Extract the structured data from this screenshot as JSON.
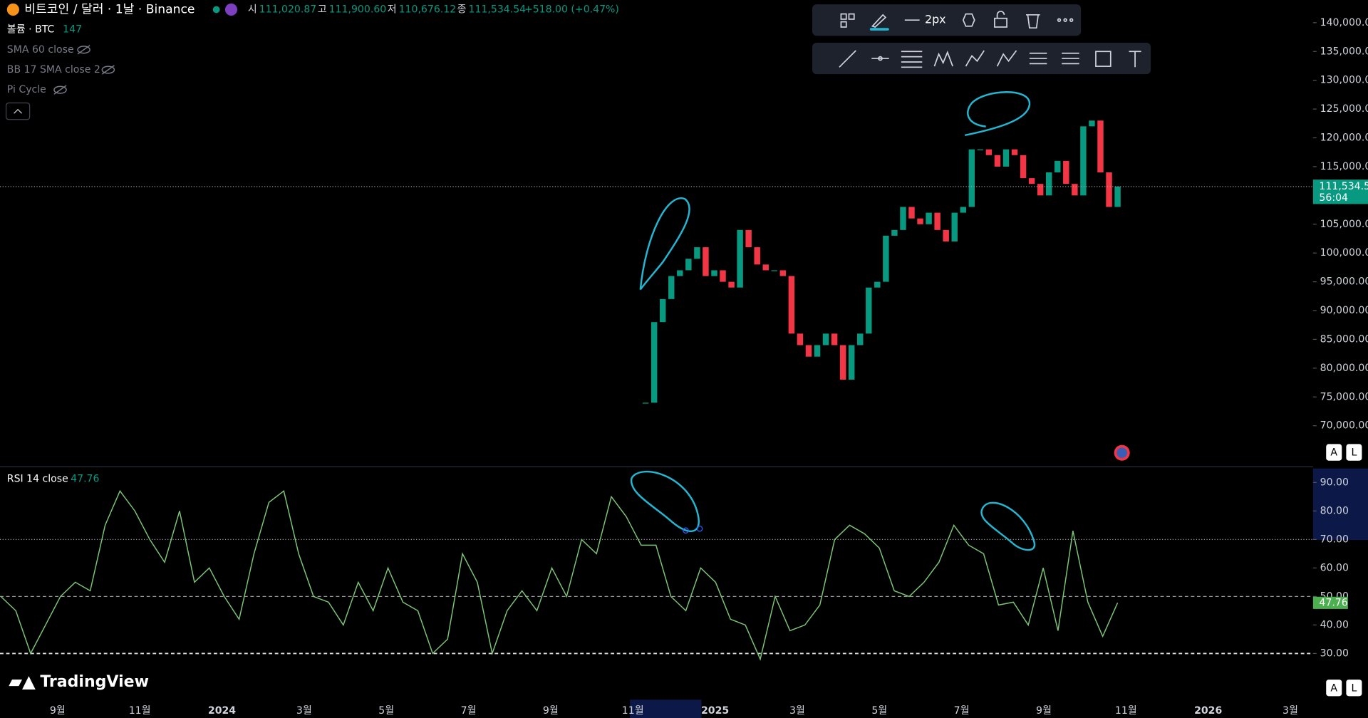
{
  "header": {
    "symbol": "비트코인 / 달러 · 1날 · Binance",
    "ohlc": [
      {
        "label": "시",
        "value": "111,020.87"
      },
      {
        "label": "고",
        "value": "111,900.60"
      },
      {
        "label": "저",
        "value": "110,676.12"
      },
      {
        "label": "종",
        "value": "111,534.54"
      }
    ],
    "change": "+518.00 (+0.47%)",
    "indicators": [
      {
        "name": "볼륨 · BTC",
        "value": "147"
      },
      {
        "name": "SMA 60 close"
      },
      {
        "name": "BB 17 SMA close 2"
      },
      {
        "name": "Pi Cycle"
      }
    ]
  },
  "toolbar": {
    "width_label": "2px"
  },
  "logo": "TradingView",
  "buttons": [
    "A",
    "L"
  ],
  "chart_data": [
    {
      "type": "candlestick",
      "countdown": "56:04",
      "values": [
        74000,
        88000,
        92000,
        96000,
        97000,
        99000,
        101000,
        96000,
        97000,
        95000,
        94000,
        104000,
        101000,
        98000,
        97000,
        97000,
        96000,
        86000,
        84000,
        82000,
        84000,
        86000,
        84000,
        78000,
        84000,
        86000,
        94000,
        95000,
        103000,
        104000,
        108000,
        106000,
        105000,
        107000,
        104000,
        102000,
        107000,
        108000,
        118000,
        118000,
        117000,
        115000,
        118000,
        117000,
        113000,
        112000,
        110000,
        114000,
        116000,
        112000,
        110000,
        122000,
        123000,
        114000,
        108000,
        111534.54
      ],
      "ylim": [
        63180,
        143940
      ],
      "yticks": [
        {
          "value": 140000,
          "label": "140,000.00"
        },
        {
          "value": 135000,
          "label": "135,000.00"
        },
        {
          "value": 130000,
          "label": "130,000.00"
        },
        {
          "value": 125000,
          "label": "125,000.00"
        },
        {
          "value": 120000,
          "label": "120,000.00"
        },
        {
          "value": 115000,
          "label": "115,000.00"
        },
        {
          "value": 110000,
          "label": "110,000.00"
        },
        {
          "value": 105000,
          "label": "105,000.00"
        },
        {
          "value": 100000,
          "label": "100,000.00"
        },
        {
          "value": 95000,
          "label": "95,000.00"
        },
        {
          "value": 90000,
          "label": "90,000.00"
        },
        {
          "value": 85000,
          "label": "85,000.00"
        },
        {
          "value": 80000,
          "label": "80,000.00"
        },
        {
          "value": 75000,
          "label": "75,000.00"
        },
        {
          "value": 70000,
          "label": "70,000.00"
        }
      ],
      "up_color": "#089981",
      "down_color": "#f23645"
    },
    {
      "type": "line",
      "title": "RSI 14 close",
      "color": "#7cc576",
      "values": [
        50,
        45,
        30,
        40,
        50,
        55,
        52,
        75,
        87,
        80,
        70,
        62,
        80,
        55,
        60,
        50,
        42,
        65,
        83,
        87,
        65,
        50,
        48,
        40,
        55,
        45,
        60,
        48,
        45,
        30,
        35,
        65,
        55,
        30,
        45,
        52,
        45,
        60,
        50,
        70,
        65,
        85,
        78,
        68,
        68,
        50,
        45,
        60,
        55,
        42,
        40,
        28,
        50,
        38,
        40,
        47,
        70,
        75,
        72,
        67,
        52,
        50,
        55,
        62,
        75,
        68,
        65,
        47,
        48,
        40,
        60,
        38,
        73,
        48,
        36,
        47.76
      ],
      "ylim": [
        14.4,
        94.9
      ],
      "yticks": [
        {
          "value": 90,
          "label": "90.00"
        },
        {
          "value": 80,
          "label": "80.00"
        },
        {
          "value": 70,
          "label": "70.00"
        },
        {
          "value": 60,
          "label": "60.00"
        },
        {
          "value": 50,
          "label": "50.00"
        },
        {
          "value": 40,
          "label": "40.00"
        },
        {
          "value": 30,
          "label": "30.00"
        }
      ],
      "levels": [
        70,
        50,
        30
      ],
      "time_labels": [
        "9월",
        "11월",
        "2024",
        "3월",
        "5월",
        "7월",
        "9월",
        "11월",
        "2025",
        "3월",
        "5월",
        "7월",
        "9월",
        "11월",
        "2026",
        "3월"
      ]
    }
  ]
}
